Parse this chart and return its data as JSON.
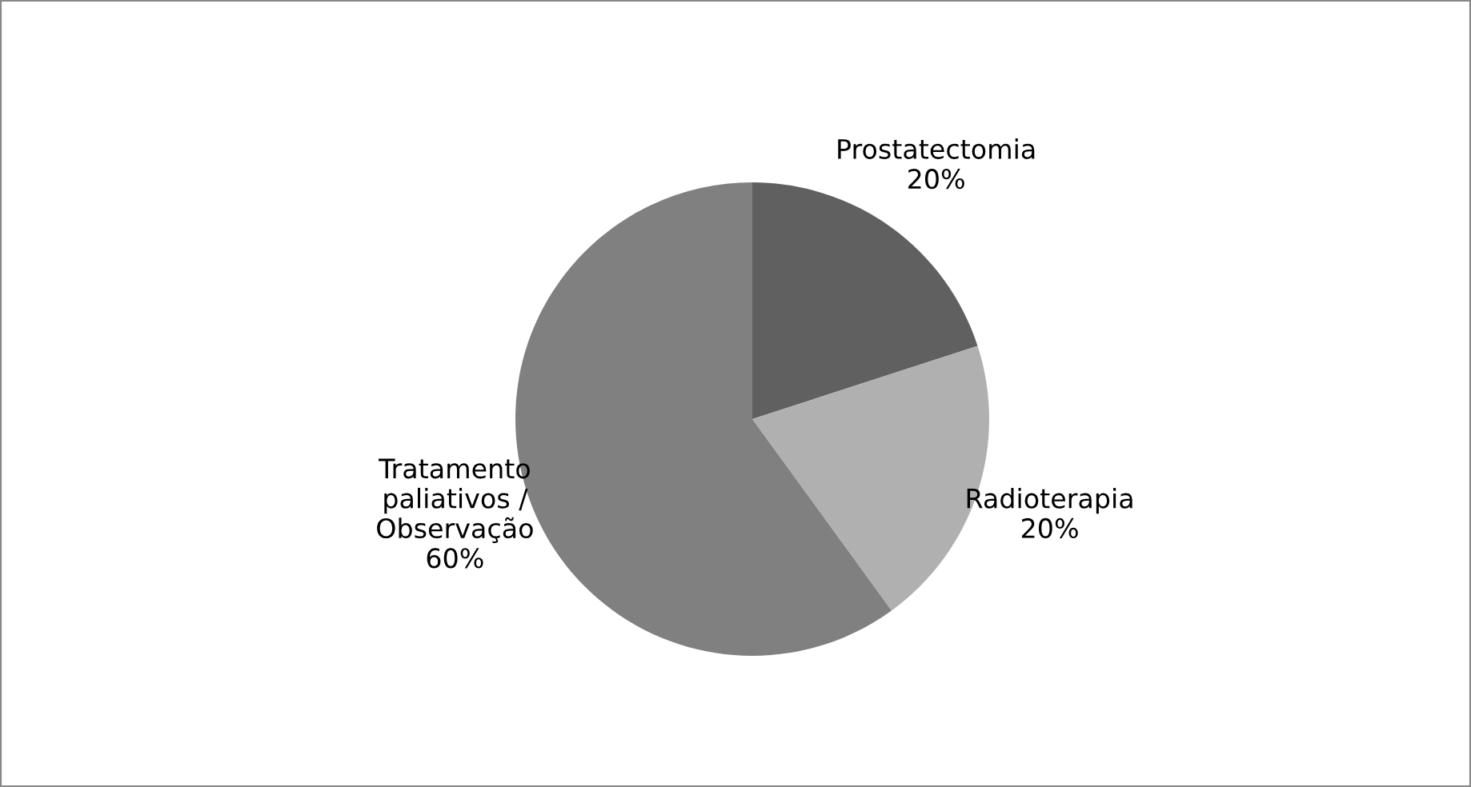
{
  "chart_data": {
    "type": "pie",
    "categories": [
      "Prostatectomia",
      "Radioterapia",
      "Tratamento\npaliativos /\nObservação"
    ],
    "values": [
      20,
      20,
      60
    ],
    "colors": [
      "#606060",
      "#b0b0b0",
      "#808080"
    ],
    "value_labels": [
      "20%",
      "20%",
      "60%"
    ],
    "legend": false
  }
}
